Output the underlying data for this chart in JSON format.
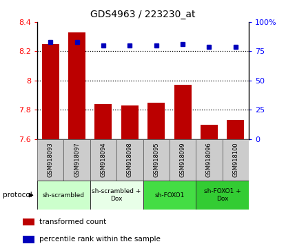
{
  "title": "GDS4963 / 223230_at",
  "samples": [
    "GSM918093",
    "GSM918097",
    "GSM918094",
    "GSM918098",
    "GSM918095",
    "GSM918099",
    "GSM918096",
    "GSM918100"
  ],
  "transformed_count": [
    8.25,
    8.33,
    7.84,
    7.83,
    7.85,
    7.97,
    7.7,
    7.73
  ],
  "percentile_rank": [
    83,
    83,
    80,
    80,
    80,
    81,
    79,
    79
  ],
  "ylim": [
    7.6,
    8.4
  ],
  "yticks": [
    7.6,
    7.8,
    8.0,
    8.2,
    8.4
  ],
  "right_yticks": [
    0,
    25,
    50,
    75,
    100
  ],
  "right_ylim": [
    0,
    100
  ],
  "bar_color": "#bb0000",
  "dot_color": "#0000bb",
  "protocol_groups": [
    {
      "label": "sh-scrambled",
      "start": 0,
      "end": 2,
      "color": "#ccffcc"
    },
    {
      "label": "sh-scrambled +\nDox",
      "start": 2,
      "end": 4,
      "color": "#e8ffe8"
    },
    {
      "label": "sh-FOXO1",
      "start": 4,
      "end": 6,
      "color": "#44dd44"
    },
    {
      "label": "sh-FOXO1 +\nDox",
      "start": 6,
      "end": 8,
      "color": "#33cc33"
    }
  ],
  "tick_bg_color": "#cccccc",
  "legend_red_label": "transformed count",
  "legend_blue_label": "percentile rank within the sample",
  "grid_yticks": [
    7.8,
    8.0,
    8.2
  ],
  "right_labels": [
    "0",
    "25",
    "50",
    "75",
    "100%"
  ]
}
